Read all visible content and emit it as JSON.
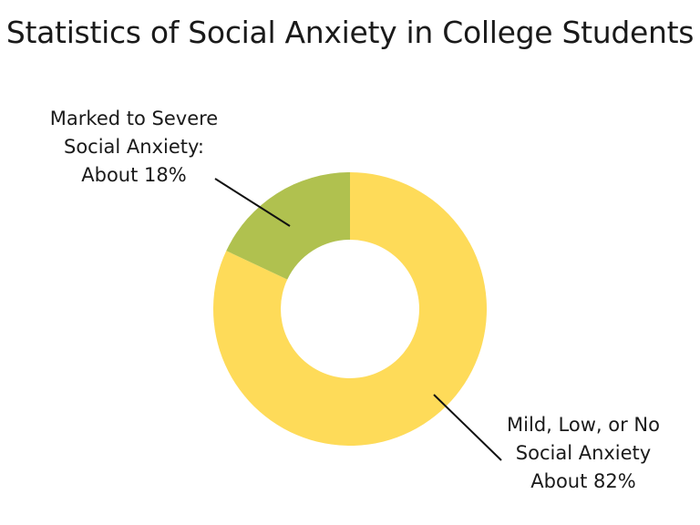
{
  "chart_data": {
    "type": "pie",
    "title": "Statistics of Social Anxiety in College Students",
    "categories": [
      "Marked to Severe Social Anxiety",
      "Mild, Low, or No Social Anxiety"
    ],
    "values": [
      18,
      82
    ],
    "unit": "%",
    "donut": true,
    "colors": [
      "#B0C14F",
      "#FEDB59"
    ],
    "annotations": [
      {
        "lines": [
          "Marked to Severe",
          "Social Anxiety:",
          "About 18%"
        ]
      },
      {
        "lines": [
          "Mild, Low, or No",
          "Social Anxiety",
          "About 82%"
        ]
      }
    ]
  }
}
